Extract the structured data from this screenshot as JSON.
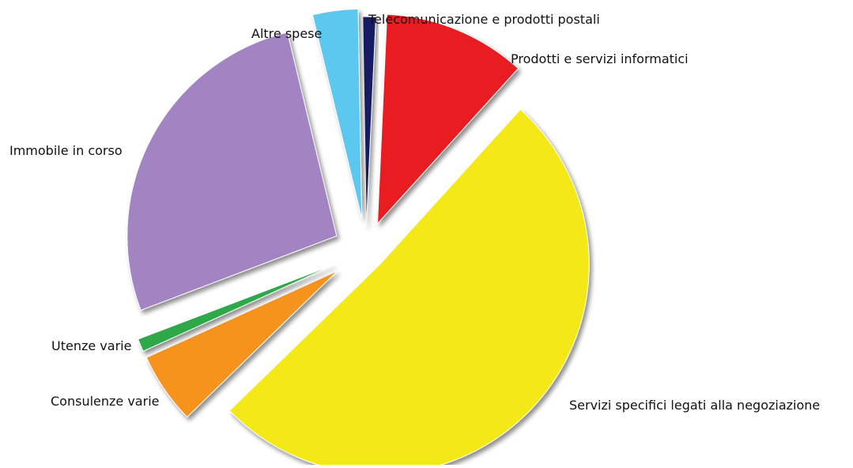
{
  "chart_data": {
    "type": "pie",
    "title": "",
    "start_angle_deg": -1,
    "slices": [
      {
        "label": "Telecomunicazione e prodotti postali",
        "value": 1.0,
        "color": "#141d63"
      },
      {
        "label": "Prodotti e servizi informatici",
        "value": 11.0,
        "color": "#e91e22"
      },
      {
        "label": "Servizi specifici legati alla negoziazione",
        "value": 51.0,
        "color": "#f4e918"
      },
      {
        "label": "Consulenze varie",
        "value": 5.5,
        "color": "#f5931d"
      },
      {
        "label": "Utenze varie",
        "value": 1.0,
        "color": "#2ea84a"
      },
      {
        "label": "Immobile in corso",
        "value": 27.0,
        "color": "#a384c2"
      },
      {
        "label": "Altre spese",
        "value": 3.5,
        "color": "#5cc8f0"
      }
    ],
    "legend": "labels beside slices",
    "exploded": true
  }
}
